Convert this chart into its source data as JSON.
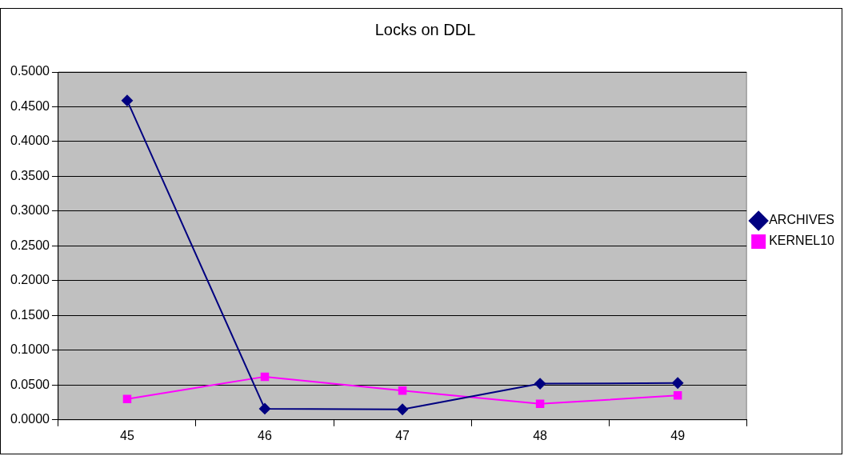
{
  "chart_data": {
    "type": "line",
    "title": "Locks on DDL",
    "categories": [
      "45",
      "46",
      "47",
      "48",
      "49"
    ],
    "series": [
      {
        "name": "ARCHIVES",
        "color": "#000080",
        "marker": "diamond",
        "values": [
          0.459,
          0.016,
          0.015,
          0.052,
          0.053
        ]
      },
      {
        "name": "KERNEL10",
        "color": "#ff00ff",
        "marker": "square",
        "values": [
          0.03,
          0.062,
          0.042,
          0.023,
          0.035
        ]
      }
    ],
    "ylim": [
      0,
      0.5
    ],
    "yticks": [
      {
        "value": 0,
        "label": "0.0000"
      },
      {
        "value": 0.05,
        "label": "0.0500"
      },
      {
        "value": 0.1,
        "label": "0.1000"
      },
      {
        "value": 0.15,
        "label": "0.1500"
      },
      {
        "value": 0.2,
        "label": "0.2000"
      },
      {
        "value": 0.25,
        "label": "0.2500"
      },
      {
        "value": 0.3,
        "label": "0.3000"
      },
      {
        "value": 0.35,
        "label": "0.3500"
      },
      {
        "value": 0.4,
        "label": "0.4000"
      },
      {
        "value": 0.45,
        "label": "0.4500"
      },
      {
        "value": 0.5,
        "label": "0.5000"
      }
    ],
    "grid": "y",
    "legend": "right",
    "line_style": "solid"
  }
}
